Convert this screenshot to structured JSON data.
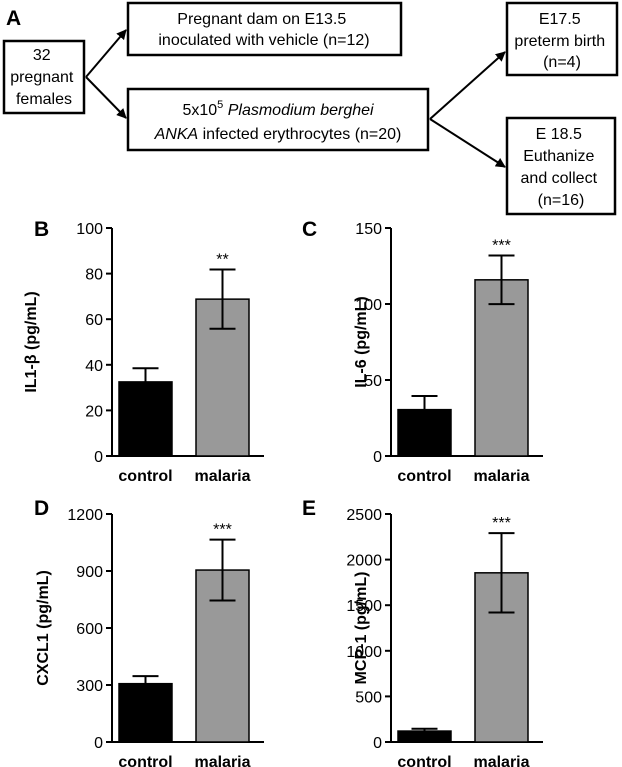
{
  "flowchart": {
    "panel_label": "A",
    "start": {
      "lines": [
        "32",
        "pregnant",
        "females"
      ]
    },
    "vehicle": {
      "lines": [
        "Pregnant dam on E13.5",
        "inoculated with vehicle (n=12)"
      ]
    },
    "infected": {
      "line1_pre": "5x10",
      "line1_sup": "5",
      "line1_italic": " Plasmodium berghei",
      "line2_italic": "ANKA",
      "line2_rest": " infected erythrocytes (n=20)"
    },
    "preterm": {
      "lines": [
        "E17.5",
        "preterm birth",
        "(n=4)"
      ]
    },
    "euthanize": {
      "lines": [
        "E 18.5",
        "Euthanize",
        "and collect",
        "(n=16)"
      ]
    }
  },
  "chart_data": [
    {
      "panel": "B",
      "type": "bar",
      "ylabel": "IL1-β (pg/mL)",
      "categories": [
        "control",
        "malaria"
      ],
      "values": [
        32.5,
        68.8
      ],
      "errors": [
        6,
        13
      ],
      "bar_colors": [
        "#000000",
        "#999999"
      ],
      "significance": [
        "",
        "**"
      ],
      "ylim": [
        0,
        100
      ],
      "yticks": [
        0,
        20,
        40,
        60,
        80,
        100
      ]
    },
    {
      "panel": "C",
      "type": "bar",
      "ylabel": "IL-6 (pg/mL)",
      "categories": [
        "control",
        "malaria"
      ],
      "values": [
        30.5,
        115.9
      ],
      "errors": [
        9,
        16
      ],
      "bar_colors": [
        "#000000",
        "#999999"
      ],
      "significance": [
        "",
        "***"
      ],
      "ylim": [
        0,
        150
      ],
      "yticks": [
        0,
        50,
        100,
        150
      ]
    },
    {
      "panel": "D",
      "type": "bar",
      "ylabel": "CXCL1 (pg/mL)",
      "categories": [
        "control",
        "malaria"
      ],
      "values": [
        307,
        905
      ],
      "errors": [
        40,
        160
      ],
      "bar_colors": [
        "#000000",
        "#999999"
      ],
      "significance": [
        "",
        "***"
      ],
      "ylim": [
        0,
        1200
      ],
      "yticks": [
        0,
        300,
        600,
        900,
        1200
      ]
    },
    {
      "panel": "E",
      "type": "bar",
      "ylabel": "MCP-1 (pg/mL)",
      "categories": [
        "control",
        "malaria"
      ],
      "values": [
        120,
        1855
      ],
      "errors": [
        25,
        435
      ],
      "bar_colors": [
        "#000000",
        "#999999"
      ],
      "significance": [
        "",
        "***"
      ],
      "ylim": [
        0,
        2500
      ],
      "yticks": [
        0,
        500,
        1000,
        1500,
        2000,
        2500
      ]
    }
  ]
}
